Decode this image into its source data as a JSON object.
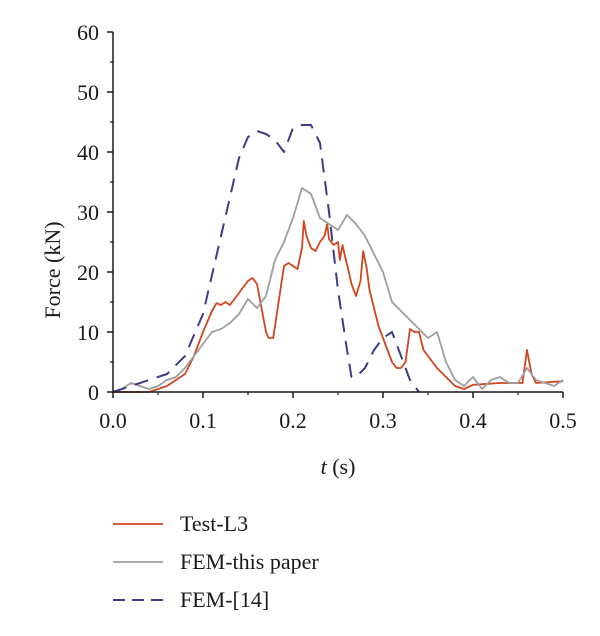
{
  "chart_data": {
    "type": "line",
    "xlabel_var": "t",
    "xlabel_unit": " (s)",
    "ylabel": "Force (kN)",
    "xlim": [
      0,
      0.5
    ],
    "ylim": [
      0,
      60
    ],
    "x_ticks": [
      "0.0",
      "0.1",
      "0.2",
      "0.3",
      "0.4",
      "0.5"
    ],
    "y_ticks": [
      "0",
      "10",
      "20",
      "30",
      "40",
      "50",
      "60"
    ],
    "grid": false,
    "legend_position": "below",
    "series": [
      {
        "name": "Test-L3",
        "color": "#d2451e",
        "style": "solid",
        "points": [
          [
            0.0,
            0
          ],
          [
            0.04,
            0
          ],
          [
            0.06,
            1
          ],
          [
            0.08,
            3
          ],
          [
            0.09,
            6
          ],
          [
            0.1,
            10
          ],
          [
            0.11,
            13.5
          ],
          [
            0.115,
            14.8
          ],
          [
            0.12,
            14.5
          ],
          [
            0.125,
            15
          ],
          [
            0.13,
            14.5
          ],
          [
            0.135,
            15.5
          ],
          [
            0.14,
            16.5
          ],
          [
            0.15,
            18.5
          ],
          [
            0.155,
            19
          ],
          [
            0.16,
            18
          ],
          [
            0.165,
            14
          ],
          [
            0.17,
            10
          ],
          [
            0.173,
            9
          ],
          [
            0.178,
            9
          ],
          [
            0.182,
            13
          ],
          [
            0.187,
            18
          ],
          [
            0.19,
            21
          ],
          [
            0.195,
            21.5
          ],
          [
            0.2,
            21
          ],
          [
            0.205,
            20.5
          ],
          [
            0.21,
            24
          ],
          [
            0.212,
            28.5
          ],
          [
            0.215,
            26
          ],
          [
            0.22,
            24
          ],
          [
            0.225,
            23.5
          ],
          [
            0.23,
            25
          ],
          [
            0.235,
            26
          ],
          [
            0.238,
            28
          ],
          [
            0.24,
            25.5
          ],
          [
            0.245,
            24.5
          ],
          [
            0.25,
            25
          ],
          [
            0.252,
            22
          ],
          [
            0.255,
            24.5
          ],
          [
            0.258,
            22.5
          ],
          [
            0.262,
            20
          ],
          [
            0.265,
            18
          ],
          [
            0.27,
            16
          ],
          [
            0.275,
            18.5
          ],
          [
            0.278,
            23.5
          ],
          [
            0.282,
            20.5
          ],
          [
            0.285,
            17
          ],
          [
            0.29,
            14
          ],
          [
            0.295,
            11
          ],
          [
            0.3,
            9
          ],
          [
            0.305,
            7
          ],
          [
            0.31,
            5
          ],
          [
            0.315,
            4
          ],
          [
            0.32,
            4
          ],
          [
            0.325,
            5
          ],
          [
            0.33,
            10.5
          ],
          [
            0.335,
            10
          ],
          [
            0.34,
            10
          ],
          [
            0.345,
            7
          ],
          [
            0.35,
            6
          ],
          [
            0.355,
            5
          ],
          [
            0.36,
            4
          ],
          [
            0.37,
            2.5
          ],
          [
            0.38,
            1
          ],
          [
            0.39,
            0.5
          ],
          [
            0.4,
            1.2
          ],
          [
            0.43,
            1.5
          ],
          [
            0.455,
            1.5
          ],
          [
            0.46,
            7
          ],
          [
            0.465,
            3
          ],
          [
            0.47,
            1.5
          ],
          [
            0.5,
            1.8
          ]
        ]
      },
      {
        "name": "FEM-this paper",
        "color": "#9e9e9e",
        "style": "solid",
        "points": [
          [
            0.0,
            0
          ],
          [
            0.01,
            0.5
          ],
          [
            0.02,
            1.5
          ],
          [
            0.03,
            1
          ],
          [
            0.04,
            0.5
          ],
          [
            0.05,
            1
          ],
          [
            0.06,
            2
          ],
          [
            0.07,
            2.5
          ],
          [
            0.08,
            4
          ],
          [
            0.09,
            6
          ],
          [
            0.1,
            8
          ],
          [
            0.11,
            10
          ],
          [
            0.12,
            10.5
          ],
          [
            0.13,
            11.5
          ],
          [
            0.14,
            13
          ],
          [
            0.15,
            15.5
          ],
          [
            0.16,
            14
          ],
          [
            0.17,
            16
          ],
          [
            0.18,
            22
          ],
          [
            0.19,
            25
          ],
          [
            0.2,
            29
          ],
          [
            0.21,
            34
          ],
          [
            0.22,
            33
          ],
          [
            0.23,
            29
          ],
          [
            0.24,
            28
          ],
          [
            0.25,
            27
          ],
          [
            0.26,
            29.5
          ],
          [
            0.27,
            28
          ],
          [
            0.28,
            26
          ],
          [
            0.29,
            23
          ],
          [
            0.3,
            20
          ],
          [
            0.31,
            15
          ],
          [
            0.32,
            13.5
          ],
          [
            0.33,
            12
          ],
          [
            0.34,
            10.5
          ],
          [
            0.35,
            9
          ],
          [
            0.36,
            10
          ],
          [
            0.37,
            5
          ],
          [
            0.38,
            2
          ],
          [
            0.39,
            1
          ],
          [
            0.4,
            2.5
          ],
          [
            0.41,
            0.5
          ],
          [
            0.42,
            2
          ],
          [
            0.43,
            2.5
          ],
          [
            0.44,
            1.5
          ],
          [
            0.45,
            1.5
          ],
          [
            0.46,
            4
          ],
          [
            0.47,
            2
          ],
          [
            0.48,
            1.5
          ],
          [
            0.49,
            1
          ],
          [
            0.5,
            2
          ]
        ]
      },
      {
        "name": "FEM-[14]",
        "color": "#3c3c8c",
        "style": "dashed",
        "points": [
          [
            0.0,
            0
          ],
          [
            0.02,
            1
          ],
          [
            0.04,
            2
          ],
          [
            0.06,
            3
          ],
          [
            0.08,
            6
          ],
          [
            0.1,
            13
          ],
          [
            0.12,
            26
          ],
          [
            0.14,
            39
          ],
          [
            0.15,
            42.5
          ],
          [
            0.16,
            43.5
          ],
          [
            0.17,
            43
          ],
          [
            0.18,
            42
          ],
          [
            0.19,
            40
          ],
          [
            0.2,
            44
          ],
          [
            0.21,
            44.5
          ],
          [
            0.22,
            44.5
          ],
          [
            0.23,
            41.5
          ],
          [
            0.24,
            30
          ],
          [
            0.25,
            17
          ],
          [
            0.26,
            7
          ],
          [
            0.265,
            2.5
          ],
          [
            0.27,
            2.5
          ],
          [
            0.28,
            4
          ],
          [
            0.29,
            7
          ],
          [
            0.3,
            9
          ],
          [
            0.31,
            10
          ],
          [
            0.32,
            6
          ],
          [
            0.33,
            2
          ],
          [
            0.34,
            0
          ]
        ]
      }
    ]
  }
}
